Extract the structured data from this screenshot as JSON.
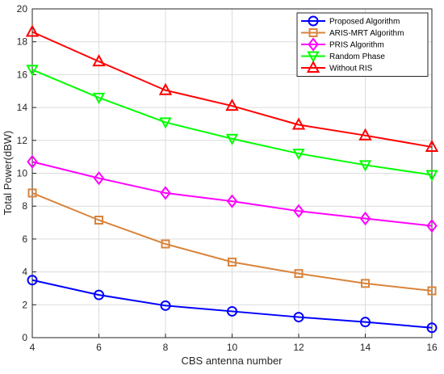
{
  "chart_data": {
    "type": "line",
    "title": "",
    "xlabel": "CBS antenna number",
    "ylabel": "Total Power(dBW)",
    "x": [
      4,
      6,
      8,
      10,
      12,
      14,
      16
    ],
    "xlim": [
      4,
      16
    ],
    "ylim": [
      0,
      20
    ],
    "xticks": [
      "4",
      "6",
      "8",
      "10",
      "12",
      "14",
      "16"
    ],
    "yticks": [
      "0",
      "2",
      "4",
      "6",
      "8",
      "10",
      "12",
      "14",
      "16",
      "18",
      "20"
    ],
    "grid": true,
    "legend_position": "top-right",
    "series": [
      {
        "name": "Proposed Algorithm",
        "values": [
          3.5,
          2.6,
          1.95,
          1.6,
          1.25,
          0.95,
          0.6
        ],
        "color": "#0000ff",
        "marker": "circle"
      },
      {
        "name": "ARIS-MRT Algorithm",
        "values": [
          8.8,
          7.15,
          5.7,
          4.6,
          3.9,
          3.3,
          2.85
        ],
        "color": "#d9843b",
        "marker": "square"
      },
      {
        "name": "PRIS Algorithm",
        "values": [
          10.7,
          9.7,
          8.8,
          8.3,
          7.7,
          7.25,
          6.8
        ],
        "color": "#ff00ff",
        "marker": "diamond"
      },
      {
        "name": "Random Phase",
        "values": [
          16.3,
          14.6,
          13.1,
          12.1,
          11.2,
          10.5,
          9.9
        ],
        "color": "#00ff00",
        "marker": "triangle-down"
      },
      {
        "name": "Without RIS",
        "values": [
          18.6,
          16.8,
          15.05,
          14.1,
          12.95,
          12.3,
          11.6
        ],
        "color": "#ff0000",
        "marker": "triangle-up"
      }
    ]
  }
}
